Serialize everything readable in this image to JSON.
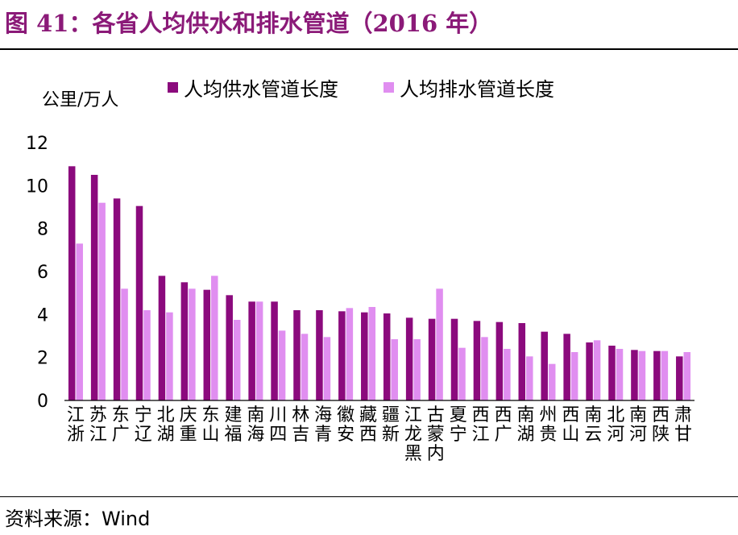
{
  "figure": {
    "title": "图 41：各省人均供水和排水管道（2016 年）",
    "source": "资料来源：Wind"
  },
  "chart_data": {
    "type": "bar",
    "ylabel": "公里/万人",
    "ylim": [
      0,
      12
    ],
    "yticks": [
      0,
      2,
      4,
      6,
      8,
      10,
      12
    ],
    "grid": false,
    "legend_position": "top",
    "categories": [
      "浙江",
      "江苏",
      "广东",
      "辽宁",
      "湖北",
      "重庆",
      "山东",
      "福建",
      "海南",
      "四川",
      "吉林",
      "青海",
      "安徽",
      "西藏",
      "新疆",
      "黑龙江",
      "内蒙古",
      "宁夏",
      "江西",
      "广西",
      "湖南",
      "贵州",
      "山西",
      "云南",
      "河北",
      "河南",
      "陕西",
      "甘肃"
    ],
    "series": [
      {
        "name": "人均供水管道长度",
        "color": "#8b0a7d",
        "values": [
          10.9,
          10.5,
          9.4,
          9.05,
          5.8,
          5.5,
          5.15,
          4.9,
          4.6,
          4.6,
          4.2,
          4.2,
          4.15,
          4.1,
          4.05,
          3.85,
          3.8,
          3.8,
          3.7,
          3.65,
          3.6,
          3.2,
          3.1,
          2.7,
          2.55,
          2.35,
          2.3,
          2.05
        ]
      },
      {
        "name": "人均排水管道长度",
        "color": "#e08ef0",
        "values": [
          7.3,
          9.2,
          5.2,
          4.2,
          4.1,
          5.2,
          5.8,
          3.75,
          4.6,
          3.25,
          3.1,
          2.95,
          4.3,
          4.35,
          2.85,
          2.85,
          5.2,
          2.45,
          2.95,
          2.4,
          2.05,
          1.7,
          2.25,
          2.8,
          2.4,
          2.3,
          2.3,
          2.25
        ]
      }
    ]
  }
}
